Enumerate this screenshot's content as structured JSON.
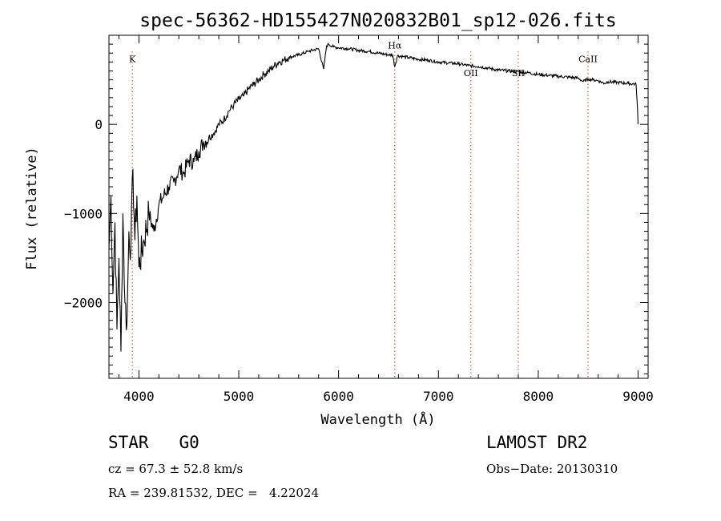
{
  "chart_data": {
    "type": "line",
    "title": "spec-56362-HD155427N020832B01_sp12-026.fits",
    "xlabel": "Wavelength (Å)",
    "ylabel": "Flux (relative)",
    "xlim": [
      3700,
      9100
    ],
    "ylim": [
      -2850,
      1000
    ],
    "x_ticks": [
      4000,
      5000,
      6000,
      7000,
      8000,
      9000
    ],
    "x_tick_labels": [
      "4000",
      "5000",
      "6000",
      "7000",
      "8000",
      "9000"
    ],
    "y_ticks": [
      0,
      -1000,
      -2000
    ],
    "y_tick_labels": [
      "0",
      "−1000",
      "−2000"
    ],
    "grid": false,
    "series": [
      {
        "x": [
          3700,
          3720,
          3740,
          3760,
          3780,
          3800,
          3820,
          3840,
          3860,
          3880,
          3900,
          3920,
          3940,
          3960,
          3980,
          4000,
          4050,
          4100,
          4150,
          4200,
          4250,
          4300,
          4350,
          4400,
          4450,
          4500,
          4550,
          4600,
          4650,
          4700,
          4750,
          4800,
          4850,
          4900,
          4950,
          5000,
          5050,
          5100,
          5150,
          5200,
          5250,
          5300,
          5350,
          5400,
          5450,
          5500,
          5600,
          5700,
          5800,
          5850,
          5880,
          5900,
          5950,
          6000,
          6100,
          6200,
          6300,
          6400,
          6500,
          6540,
          6563,
          6590,
          6650,
          6700,
          6800,
          6900,
          7000,
          7100,
          7200,
          7300,
          7400,
          7500,
          7600,
          7700,
          7800,
          7900,
          8000,
          8100,
          8200,
          8300,
          8400,
          8450,
          8500,
          8550,
          8600,
          8662,
          8700,
          8800,
          8900,
          8980,
          8995,
          9000
        ],
        "y": [
          -1400,
          -800,
          -1900,
          -1100,
          -2300,
          -1500,
          -2550,
          -1000,
          -2000,
          -2250,
          -1200,
          -1400,
          -500,
          -1300,
          -800,
          -1600,
          -1300,
          -1000,
          -1200,
          -900,
          -800,
          -700,
          -650,
          -500,
          -550,
          -400,
          -420,
          -300,
          -200,
          -150,
          -100,
          0,
          50,
          150,
          220,
          280,
          320,
          400,
          450,
          500,
          560,
          600,
          650,
          700,
          720,
          750,
          780,
          820,
          850,
          620,
          880,
          900,
          870,
          860,
          850,
          830,
          820,
          800,
          780,
          780,
          650,
          770,
          760,
          750,
          730,
          720,
          700,
          690,
          680,
          660,
          650,
          630,
          610,
          600,
          590,
          580,
          560,
          550,
          540,
          530,
          520,
          480,
          510,
          500,
          490,
          460,
          480,
          470,
          460,
          450,
          150,
          0
        ]
      }
    ],
    "line_markers": [
      {
        "label": "K",
        "x": 3934,
        "label_y": 700
      },
      {
        "label": "Hα",
        "x": 6563,
        "label_y": 850
      },
      {
        "label": "OII",
        "x": 7325,
        "label_y": 540
      },
      {
        "label": "SII",
        "x": 7800,
        "label_y": 540
      },
      {
        "label": "CaII",
        "x": 8498,
        "label_y": 700
      }
    ]
  },
  "info": {
    "object_class": "STAR   G0",
    "survey": "LAMOST DR2",
    "cz": "cz = 67.3 ± 52.8 km/s",
    "obs_date": "Obs−Date: 20130310",
    "radec": "RA = 239.81532, DEC =   4.22024"
  },
  "colors": {
    "spectrum": "#000000",
    "marker_line": "#cc3333",
    "axis": "#000000",
    "background": "#ffffff"
  }
}
